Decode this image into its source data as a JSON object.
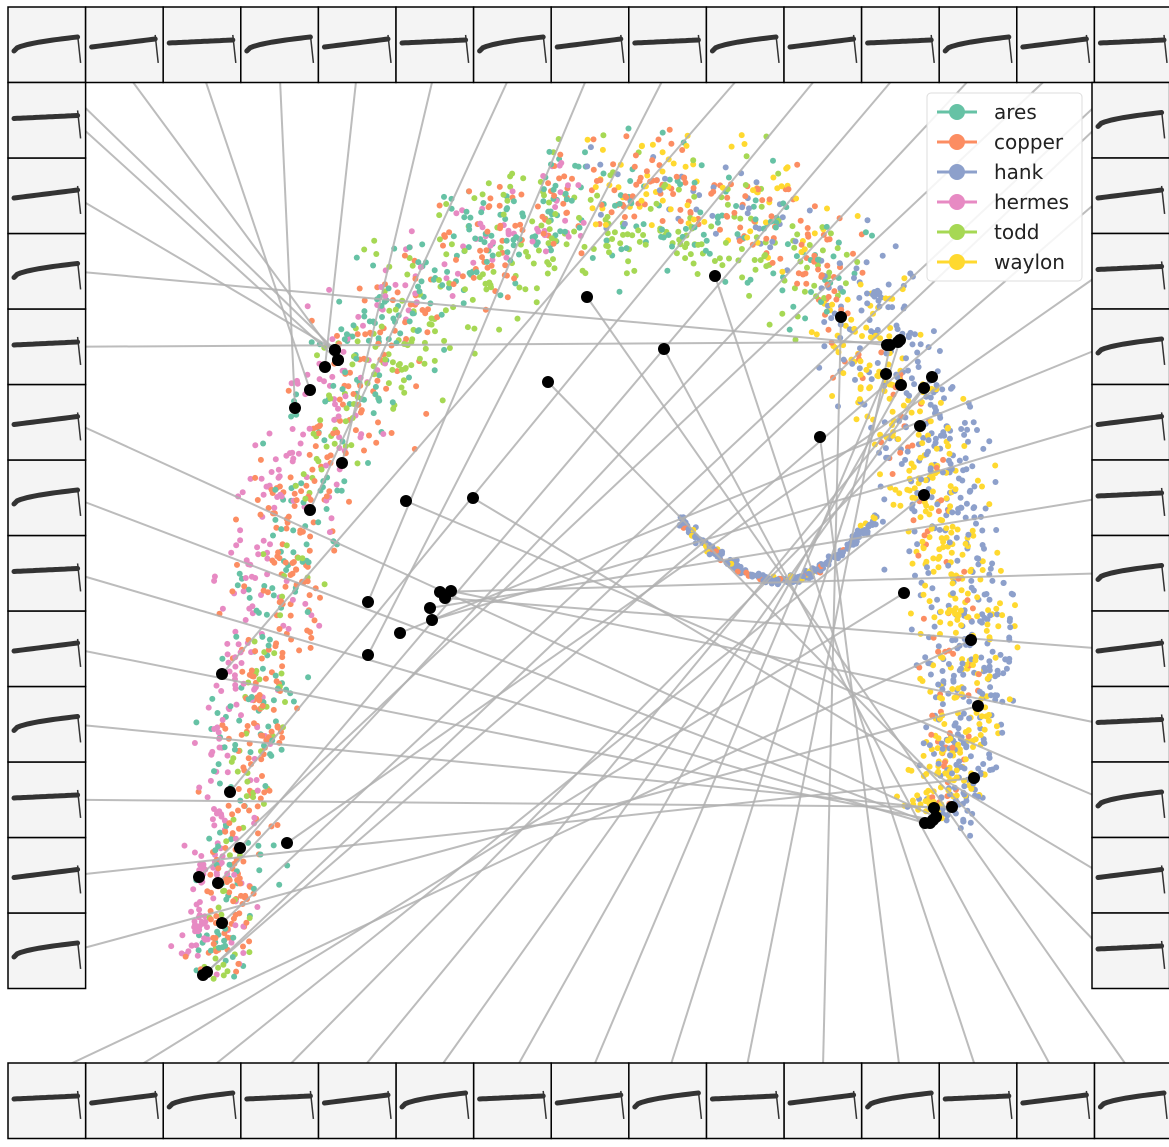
{
  "chart_data": {
    "type": "scatter",
    "title": "",
    "xlabel": "",
    "ylabel": "",
    "axes_visible": false,
    "grid": false,
    "legend": {
      "placement": "top-right"
    },
    "description_of_layout": "",
    "series": [
      {
        "name": "ares",
        "color": "#66c2a5"
      },
      {
        "name": "copper",
        "color": "#fc8d62"
      },
      {
        "name": "hank",
        "color": "#8da0cb"
      },
      {
        "name": "hermes",
        "color": "#e78ac3"
      },
      {
        "name": "todd",
        "color": "#a6d854"
      },
      {
        "name": "waylon",
        "color": "#ffd92f"
      }
    ],
    "highlight_color": "#000000",
    "connector_color": "#b0b0b0",
    "thumbnail_count": 52
  }
}
